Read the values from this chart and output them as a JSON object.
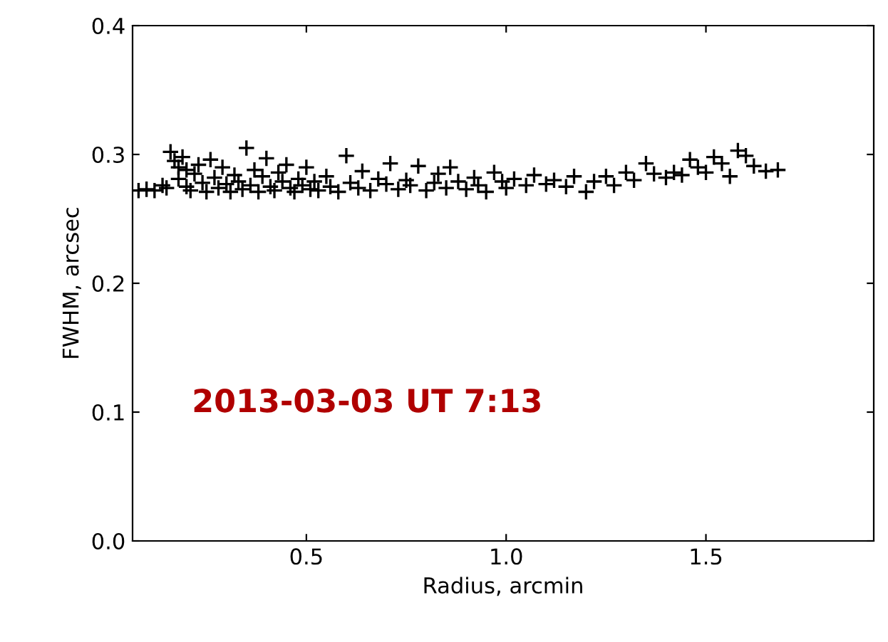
{
  "chart_data": {
    "type": "scatter",
    "xlabel": "Radius, arcmin",
    "ylabel": "FWHM, arcsec",
    "annotations": [
      "2013-03-03 UT 7:13"
    ],
    "xlim": [
      0.065,
      1.92
    ],
    "xticks": [
      0.5,
      {
        "value": 1,
        "label": "1.0"
      },
      1.5
    ],
    "ylim": [
      0.0,
      0.4
    ],
    "yticks": [
      {
        "value": 0,
        "label": "0.0"
      },
      0.1,
      0.2,
      0.3,
      0.4
    ],
    "grid": false,
    "legend": false,
    "marker": "cross",
    "series": [
      {
        "color": "#000000",
        "x": [
          0.08,
          0.1,
          0.12,
          0.14,
          0.15,
          0.16,
          0.17,
          0.18,
          0.18,
          0.19,
          0.2,
          0.2,
          0.21,
          0.22,
          0.23,
          0.24,
          0.25,
          0.26,
          0.27,
          0.28,
          0.29,
          0.3,
          0.31,
          0.32,
          0.33,
          0.34,
          0.35,
          0.36,
          0.37,
          0.38,
          0.39,
          0.4,
          0.41,
          0.42,
          0.43,
          0.44,
          0.45,
          0.46,
          0.47,
          0.48,
          0.49,
          0.5,
          0.51,
          0.52,
          0.53,
          0.55,
          0.56,
          0.58,
          0.6,
          0.61,
          0.63,
          0.64,
          0.66,
          0.68,
          0.7,
          0.71,
          0.73,
          0.75,
          0.76,
          0.78,
          0.8,
          0.82,
          0.83,
          0.85,
          0.86,
          0.88,
          0.9,
          0.92,
          0.93,
          0.95,
          0.97,
          0.99,
          1.0,
          1.02,
          1.05,
          1.07,
          1.1,
          1.12,
          1.15,
          1.17,
          1.2,
          1.22,
          1.25,
          1.27,
          1.3,
          1.32,
          1.35,
          1.37,
          1.4,
          1.42,
          1.44,
          1.46,
          1.48,
          1.5,
          1.52,
          1.54,
          1.56,
          1.58,
          1.6,
          1.62,
          1.65,
          1.68
        ],
        "values": [
          0.272,
          0.273,
          0.272,
          0.276,
          0.274,
          0.302,
          0.295,
          0.29,
          0.281,
          0.298,
          0.275,
          0.288,
          0.272,
          0.285,
          0.292,
          0.278,
          0.271,
          0.296,
          0.282,
          0.274,
          0.29,
          0.277,
          0.271,
          0.284,
          0.279,
          0.273,
          0.305,
          0.276,
          0.288,
          0.271,
          0.283,
          0.297,
          0.275,
          0.272,
          0.286,
          0.279,
          0.292,
          0.274,
          0.271,
          0.281,
          0.276,
          0.29,
          0.273,
          0.279,
          0.272,
          0.283,
          0.275,
          0.271,
          0.299,
          0.278,
          0.274,
          0.287,
          0.272,
          0.281,
          0.277,
          0.293,
          0.273,
          0.28,
          0.276,
          0.291,
          0.272,
          0.278,
          0.285,
          0.274,
          0.29,
          0.279,
          0.273,
          0.282,
          0.276,
          0.271,
          0.286,
          0.279,
          0.274,
          0.281,
          0.276,
          0.284,
          0.277,
          0.28,
          0.275,
          0.283,
          0.271,
          0.279,
          0.283,
          0.276,
          0.286,
          0.28,
          0.293,
          0.285,
          0.282,
          0.286,
          0.284,
          0.296,
          0.29,
          0.286,
          0.298,
          0.293,
          0.283,
          0.303,
          0.299,
          0.291,
          0.287,
          0.288
        ]
      }
    ]
  }
}
